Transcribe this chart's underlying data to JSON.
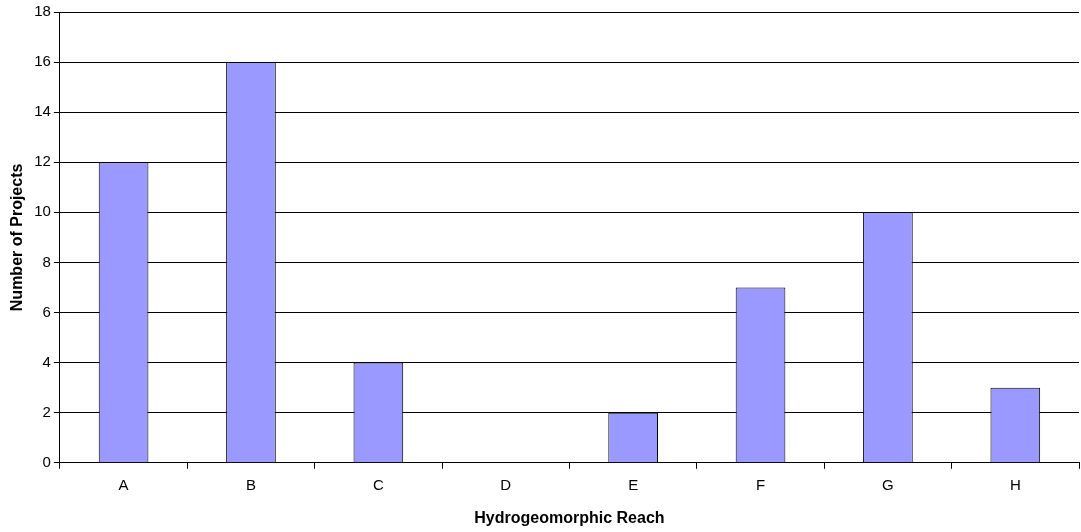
{
  "chart_data": {
    "type": "bar",
    "xlabel": "Hydrogeomorphic Reach",
    "ylabel": "Number of Projects",
    "categories": [
      "A",
      "B",
      "C",
      "D",
      "E",
      "F",
      "G",
      "H"
    ],
    "values": [
      12,
      16,
      4,
      0,
      2,
      7,
      10,
      3
    ],
    "color": "#9999ff",
    "ylim": [
      0,
      18
    ],
    "yticks": [
      0,
      2,
      4,
      6,
      8,
      10,
      12,
      14,
      16,
      18
    ],
    "grid": "y"
  }
}
